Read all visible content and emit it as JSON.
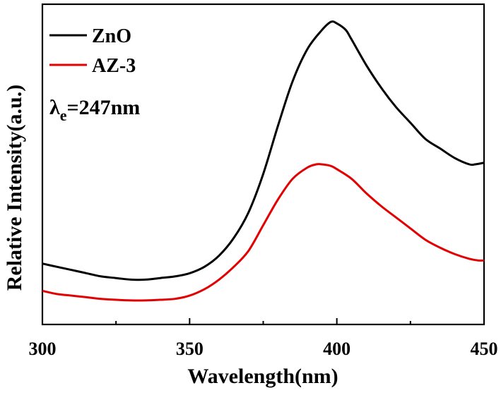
{
  "chart_data": {
    "type": "line",
    "xlabel": "Wavelength(nm)",
    "ylabel": "Relative Intensity(a.u.)",
    "xlim": [
      300,
      450
    ],
    "ylim": [
      0,
      1.0
    ],
    "x_ticks": [
      "300",
      "350",
      "400",
      "450"
    ],
    "y_ticks_labeled": false,
    "grid": false,
    "legend_placement": "top-left",
    "annotation": {
      "symbol": "λ",
      "subscript": "e",
      "text": "=247nm"
    },
    "series": [
      {
        "name": "ZnO",
        "color": "#000000",
        "x": [
          300,
          305,
          310,
          315,
          320,
          325,
          330,
          335,
          340,
          345,
          350,
          355,
          360,
          365,
          370,
          375,
          380,
          385,
          390,
          395,
          398,
          400,
          403,
          405,
          410,
          415,
          420,
          425,
          430,
          435,
          440,
          445,
          447,
          450
        ],
        "y": [
          0.19,
          0.18,
          0.17,
          0.16,
          0.15,
          0.145,
          0.14,
          0.14,
          0.145,
          0.15,
          0.16,
          0.18,
          0.215,
          0.27,
          0.35,
          0.47,
          0.62,
          0.76,
          0.86,
          0.92,
          0.945,
          0.94,
          0.92,
          0.89,
          0.81,
          0.74,
          0.68,
          0.63,
          0.58,
          0.55,
          0.52,
          0.5,
          0.5,
          0.505
        ]
      },
      {
        "name": "AZ-3",
        "color": "#e30000",
        "x": [
          300,
          305,
          310,
          315,
          320,
          325,
          330,
          335,
          340,
          345,
          350,
          355,
          360,
          365,
          370,
          375,
          380,
          385,
          390,
          393,
          395,
          398,
          400,
          405,
          410,
          415,
          420,
          425,
          430,
          435,
          440,
          445,
          448,
          450
        ],
        "y": [
          0.105,
          0.095,
          0.09,
          0.085,
          0.08,
          0.077,
          0.075,
          0.075,
          0.077,
          0.08,
          0.09,
          0.11,
          0.14,
          0.18,
          0.23,
          0.31,
          0.39,
          0.455,
          0.49,
          0.5,
          0.5,
          0.495,
          0.485,
          0.455,
          0.41,
          0.37,
          0.335,
          0.3,
          0.265,
          0.24,
          0.22,
          0.205,
          0.2,
          0.2
        ]
      }
    ]
  }
}
